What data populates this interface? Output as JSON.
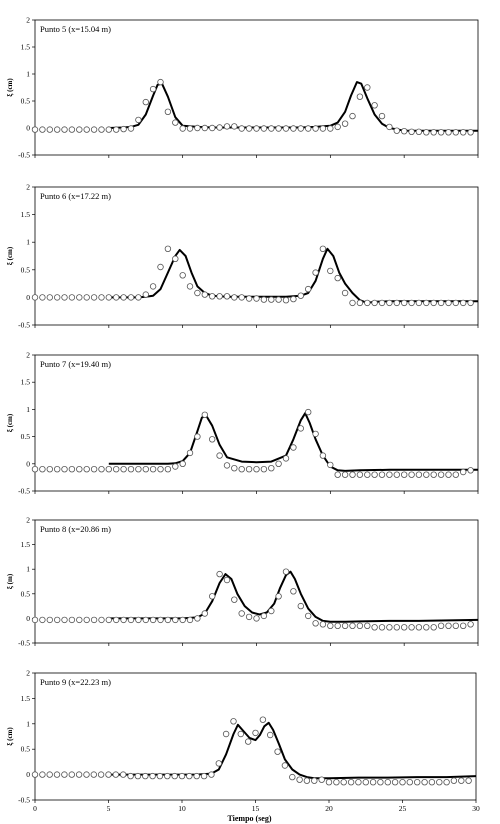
{
  "chart_data": [
    {
      "type": "line",
      "title": "Punto 5  (x=15.04  m)",
      "ylabel": "ξ (cm)",
      "xlim": [
        0,
        30
      ],
      "ylim": [
        -0.5,
        2
      ],
      "yticks": [
        "-0.5",
        "0",
        "0.5",
        "1",
        "1.5",
        "2"
      ],
      "series": [
        {
          "kind": "line",
          "x": [
            5,
            6,
            6.5,
            7,
            7.5,
            8,
            8.3,
            8.6,
            9,
            9.5,
            10,
            11,
            12,
            14,
            16,
            18,
            19,
            20,
            20.5,
            21,
            21.4,
            21.8,
            22.1,
            22.5,
            23,
            23.5,
            24,
            25,
            26,
            28,
            30
          ],
          "y": [
            0,
            0.01,
            0.02,
            0.06,
            0.25,
            0.6,
            0.8,
            0.82,
            0.58,
            0.2,
            0.04,
            0.02,
            0.01,
            0.01,
            0.01,
            0.01,
            0.02,
            0.04,
            0.1,
            0.3,
            0.6,
            0.85,
            0.82,
            0.55,
            0.25,
            0.08,
            0,
            -0.05,
            -0.05,
            -0.05,
            -0.05
          ]
        },
        {
          "kind": "points",
          "x": [
            0,
            0.5,
            1,
            1.5,
            2,
            2.5,
            3,
            3.5,
            4,
            4.5,
            5,
            5.5,
            6,
            6.5,
            7,
            7.5,
            8,
            8.5,
            9,
            9.5,
            10,
            10.5,
            11,
            11.5,
            12,
            12.5,
            13,
            13.5,
            14,
            14.5,
            15,
            15.5,
            16,
            16.5,
            17,
            17.5,
            18,
            18.5,
            19,
            19.5,
            20,
            20.5,
            21,
            21.5,
            22,
            22.5,
            23,
            23.5,
            24,
            24.5,
            25,
            25.5,
            26,
            26.5,
            27,
            27.5,
            28,
            28.5,
            29,
            29.5
          ],
          "y": [
            -0.03,
            -0.03,
            -0.03,
            -0.03,
            -0.03,
            -0.03,
            -0.03,
            -0.03,
            -0.03,
            -0.03,
            -0.03,
            -0.03,
            -0.02,
            -0.01,
            0.15,
            0.48,
            0.72,
            0.85,
            0.3,
            0.1,
            -0.01,
            -0.01,
            0,
            0,
            0,
            0.01,
            0.03,
            0.03,
            -0.01,
            -0.01,
            -0.01,
            -0.01,
            -0.01,
            -0.01,
            -0.01,
            -0.01,
            -0.01,
            -0.01,
            -0.01,
            -0.01,
            -0.01,
            0.02,
            0.08,
            0.22,
            0.58,
            0.75,
            0.42,
            0.22,
            0.02,
            -0.05,
            -0.06,
            -0.07,
            -0.07,
            -0.08,
            -0.08,
            -0.08,
            -0.08,
            -0.08,
            -0.08,
            -0.08
          ]
        }
      ]
    },
    {
      "type": "line",
      "title": "Punto 6  (x=17.22  m)",
      "ylabel": "ξ (cm)",
      "xlim": [
        0,
        30
      ],
      "ylim": [
        -0.5,
        2
      ],
      "yticks": [
        "-0.5",
        "0",
        "0.5",
        "1",
        "1.5",
        "2"
      ],
      "series": [
        {
          "kind": "line",
          "x": [
            5,
            7,
            7.5,
            8,
            8.5,
            9,
            9.5,
            9.8,
            10.2,
            10.6,
            11,
            11.5,
            12,
            13,
            15,
            17,
            18,
            18.5,
            19,
            19.5,
            19.8,
            20.2,
            20.6,
            21,
            21.5,
            22,
            22.5,
            23,
            24,
            26,
            28,
            30
          ],
          "y": [
            0,
            0,
            0.01,
            0.03,
            0.15,
            0.45,
            0.75,
            0.86,
            0.75,
            0.45,
            0.2,
            0.08,
            0.03,
            0.01,
            0.01,
            0.01,
            0.03,
            0.08,
            0.3,
            0.7,
            0.88,
            0.75,
            0.45,
            0.25,
            0.08,
            -0.05,
            -0.1,
            -0.08,
            -0.07,
            -0.07,
            -0.07,
            -0.07
          ]
        },
        {
          "kind": "points",
          "x": [
            0,
            0.5,
            1,
            1.5,
            2,
            2.5,
            3,
            3.5,
            4,
            4.5,
            5,
            5.5,
            6,
            6.5,
            7,
            7.5,
            8,
            8.5,
            9,
            9.5,
            10,
            10.5,
            11,
            11.5,
            12,
            12.5,
            13,
            13.5,
            14,
            14.5,
            15,
            15.5,
            16,
            16.5,
            17,
            17.5,
            18,
            18.5,
            19,
            19.5,
            20,
            20.5,
            21,
            21.5,
            22,
            22.5,
            23,
            23.5,
            24,
            24.5,
            25,
            25.5,
            26,
            26.5,
            27,
            27.5,
            28,
            28.5,
            29,
            29.5
          ],
          "y": [
            0,
            0,
            0,
            0,
            0,
            0,
            0,
            0,
            0,
            0,
            0,
            0,
            0,
            0,
            0,
            0.05,
            0.2,
            0.55,
            0.88,
            0.7,
            0.4,
            0.2,
            0.08,
            0.05,
            0.02,
            0.02,
            0.02,
            0,
            0,
            -0.02,
            -0.02,
            -0.04,
            -0.04,
            -0.04,
            -0.05,
            -0.03,
            0.03,
            0.15,
            0.45,
            0.88,
            0.48,
            0.35,
            0.08,
            -0.1,
            -0.1,
            -0.1,
            -0.1,
            -0.1,
            -0.1,
            -0.1,
            -0.1,
            -0.1,
            -0.1,
            -0.1,
            -0.1,
            -0.1,
            -0.1,
            -0.1,
            -0.1,
            -0.1
          ]
        }
      ]
    },
    {
      "type": "line",
      "title": "Punto 7  (x=19.40  m)",
      "ylabel": "ξ (cm)",
      "xlim": [
        0,
        30
      ],
      "ylim": [
        -0.5,
        2
      ],
      "yticks": [
        "-0.5",
        "0",
        "0.5",
        "1",
        "1.5",
        "2"
      ],
      "series": [
        {
          "kind": "line",
          "x": [
            5,
            8,
            9,
            9.5,
            10,
            10.5,
            11,
            11.3,
            11.6,
            12,
            12.5,
            13,
            14,
            15,
            16,
            17,
            17.5,
            18,
            18.3,
            18.6,
            19,
            19.5,
            20,
            20.5,
            21,
            22,
            24,
            26,
            28,
            30
          ],
          "y": [
            0,
            0,
            0,
            0.01,
            0.05,
            0.2,
            0.6,
            0.85,
            0.88,
            0.7,
            0.35,
            0.12,
            0.04,
            0.03,
            0.04,
            0.15,
            0.45,
            0.8,
            0.93,
            0.75,
            0.45,
            0.15,
            -0.05,
            -0.12,
            -0.13,
            -0.12,
            -0.11,
            -0.11,
            -0.11,
            -0.11
          ]
        },
        {
          "kind": "points",
          "x": [
            0,
            0.5,
            1,
            1.5,
            2,
            2.5,
            3,
            3.5,
            4,
            4.5,
            5,
            5.5,
            6,
            6.5,
            7,
            7.5,
            8,
            8.5,
            9,
            9.5,
            10,
            10.5,
            11,
            11.5,
            12,
            12.5,
            13,
            13.5,
            14,
            14.5,
            15,
            15.5,
            16,
            16.5,
            17,
            17.5,
            18,
            18.5,
            19,
            19.5,
            20,
            20.5,
            21,
            21.5,
            22,
            22.5,
            23,
            23.5,
            24,
            24.5,
            25,
            25.5,
            26,
            26.5,
            27,
            27.5,
            28,
            28.5,
            29,
            29.5
          ],
          "y": [
            -0.1,
            -0.1,
            -0.1,
            -0.1,
            -0.1,
            -0.1,
            -0.1,
            -0.1,
            -0.1,
            -0.1,
            -0.1,
            -0.1,
            -0.1,
            -0.1,
            -0.1,
            -0.1,
            -0.1,
            -0.1,
            -0.1,
            -0.05,
            0,
            0.2,
            0.5,
            0.9,
            0.45,
            0.15,
            -0.03,
            -0.08,
            -0.1,
            -0.1,
            -0.1,
            -0.1,
            -0.08,
            0,
            0.1,
            0.3,
            0.65,
            0.95,
            0.55,
            0.15,
            -0.02,
            -0.2,
            -0.2,
            -0.2,
            -0.2,
            -0.2,
            -0.2,
            -0.2,
            -0.2,
            -0.2,
            -0.2,
            -0.2,
            -0.2,
            -0.2,
            -0.2,
            -0.2,
            -0.2,
            -0.2,
            -0.15,
            -0.12
          ]
        }
      ]
    },
    {
      "type": "line",
      "title": "Punto 8  (x=20.86  m)",
      "ylabel": "ξ (m)",
      "xlim": [
        0,
        30
      ],
      "ylim": [
        -0.5,
        2
      ],
      "yticks": [
        "-0.5",
        "0",
        "0.5",
        "1",
        "1.5",
        "2"
      ],
      "series": [
        {
          "kind": "line",
          "x": [
            5,
            10,
            11,
            11.5,
            12,
            12.5,
            12.9,
            13.3,
            13.7,
            14.2,
            14.7,
            15.2,
            15.7,
            16.2,
            16.6,
            17,
            17.3,
            17.6,
            18,
            18.5,
            19,
            19.5,
            20,
            21,
            22,
            24,
            26,
            28,
            30
          ],
          "y": [
            0,
            0,
            0.02,
            0.1,
            0.35,
            0.72,
            0.9,
            0.8,
            0.5,
            0.25,
            0.12,
            0.08,
            0.12,
            0.3,
            0.62,
            0.88,
            0.95,
            0.8,
            0.5,
            0.2,
            0.03,
            -0.05,
            -0.07,
            -0.07,
            -0.06,
            -0.05,
            -0.05,
            -0.04,
            -0.03
          ]
        },
        {
          "kind": "points",
          "x": [
            0,
            0.5,
            1,
            1.5,
            2,
            2.5,
            3,
            3.5,
            4,
            4.5,
            5,
            5.5,
            6,
            6.5,
            7,
            7.5,
            8,
            8.5,
            9,
            9.5,
            10,
            10.5,
            11,
            11.5,
            12,
            12.5,
            13,
            13.5,
            14,
            14.5,
            15,
            15.5,
            16,
            16.5,
            17,
            17.5,
            18,
            18.5,
            19,
            19.5,
            20,
            20.5,
            21,
            21.5,
            22,
            22.5,
            23,
            23.5,
            24,
            24.5,
            25,
            25.5,
            26,
            26.5,
            27,
            27.5,
            28,
            28.5,
            29,
            29.5
          ],
          "y": [
            -0.03,
            -0.03,
            -0.03,
            -0.03,
            -0.03,
            -0.03,
            -0.03,
            -0.03,
            -0.03,
            -0.03,
            -0.03,
            -0.03,
            -0.03,
            -0.03,
            -0.03,
            -0.03,
            -0.03,
            -0.03,
            -0.03,
            -0.03,
            -0.03,
            -0.03,
            0,
            0.1,
            0.45,
            0.9,
            0.78,
            0.38,
            0.1,
            0.03,
            0,
            0.05,
            0.15,
            0.45,
            0.95,
            0.55,
            0.25,
            0.05,
            -0.1,
            -0.12,
            -0.15,
            -0.15,
            -0.15,
            -0.15,
            -0.15,
            -0.15,
            -0.18,
            -0.18,
            -0.18,
            -0.18,
            -0.18,
            -0.18,
            -0.18,
            -0.18,
            -0.18,
            -0.15,
            -0.15,
            -0.15,
            -0.15,
            -0.12
          ]
        }
      ]
    },
    {
      "type": "line",
      "title": "Punto 9  (x=22.23  m)",
      "ylabel": "ξ (cm)",
      "xlabel": "Tiempo (seg)",
      "xlim": [
        0,
        30
      ],
      "ylim": [
        -0.5,
        2
      ],
      "xticks": [
        "0",
        "5",
        "10",
        "15",
        "20",
        "25",
        "30"
      ],
      "yticks": [
        "-0.5",
        "0",
        "0.5",
        "1",
        "1.5",
        "2"
      ],
      "series": [
        {
          "kind": "line",
          "x": [
            5,
            11,
            12,
            12.5,
            13,
            13.5,
            13.8,
            14.2,
            14.6,
            15,
            15.3,
            15.6,
            15.9,
            16.2,
            16.6,
            17,
            17.5,
            18,
            18.5,
            19,
            20,
            22,
            24,
            26,
            28,
            30
          ],
          "y": [
            0,
            0,
            0.02,
            0.1,
            0.4,
            0.8,
            0.98,
            0.85,
            0.72,
            0.68,
            0.78,
            0.95,
            1.02,
            0.88,
            0.6,
            0.3,
            0.1,
            0,
            -0.05,
            -0.07,
            -0.07,
            -0.06,
            -0.06,
            -0.05,
            -0.05,
            -0.03
          ]
        },
        {
          "kind": "points",
          "x": [
            0,
            0.5,
            1,
            1.5,
            2,
            2.5,
            3,
            3.5,
            4,
            4.5,
            5,
            5.5,
            6,
            6.5,
            7,
            7.5,
            8,
            8.5,
            9,
            9.5,
            10,
            10.5,
            11,
            11.5,
            12,
            12.5,
            13,
            13.5,
            14,
            14.5,
            15,
            15.5,
            16,
            16.5,
            17,
            17.5,
            18,
            18.5,
            19,
            19.5,
            20,
            20.5,
            21,
            21.5,
            22,
            22.5,
            23,
            23.5,
            24,
            24.5,
            25,
            25.5,
            26,
            26.5,
            27,
            27.5,
            28,
            28.5,
            29,
            29.5
          ],
          "y": [
            0,
            0,
            0,
            0,
            0,
            0,
            0,
            0,
            0,
            0,
            0,
            0,
            0,
            -0.03,
            -0.03,
            -0.03,
            -0.03,
            -0.03,
            -0.03,
            -0.03,
            -0.03,
            -0.03,
            -0.03,
            -0.03,
            0,
            0.22,
            0.8,
            1.05,
            0.8,
            0.65,
            0.82,
            1.08,
            0.78,
            0.45,
            0.18,
            -0.05,
            -0.1,
            -0.12,
            -0.12,
            -0.1,
            -0.15,
            -0.15,
            -0.15,
            -0.15,
            -0.15,
            -0.15,
            -0.15,
            -0.15,
            -0.15,
            -0.15,
            -0.15,
            -0.15,
            -0.15,
            -0.15,
            -0.15,
            -0.15,
            -0.15,
            -0.12,
            -0.12,
            -0.12
          ]
        }
      ]
    }
  ]
}
